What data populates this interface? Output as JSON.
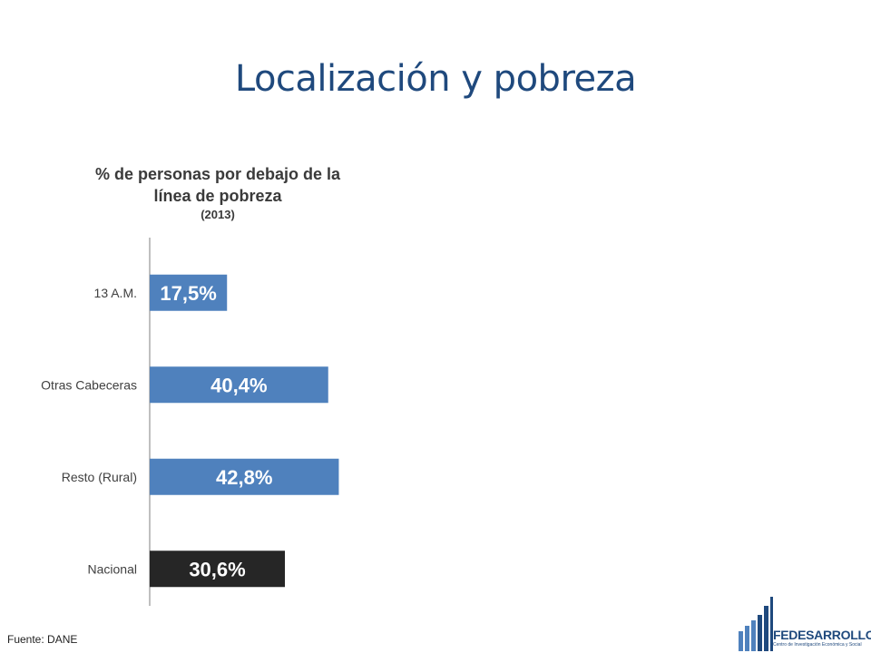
{
  "slide": {
    "title": "Localización y pobreza",
    "source": "Fuente: DANE"
  },
  "chart_data": {
    "type": "bar",
    "orientation": "horizontal",
    "title_lines": [
      "% de personas por debajo de la",
      "línea de pobreza"
    ],
    "subtitle": "(2013)",
    "categories": [
      "13 A.M.",
      "Otras Cabeceras",
      "Resto (Rural)",
      "Nacional"
    ],
    "values": [
      17.5,
      40.4,
      42.8,
      30.6
    ],
    "data_labels": [
      "17,5%",
      "40,4%",
      "42,8%",
      "30,6%"
    ],
    "bar_colors": [
      "#4f81bd",
      "#4f81bd",
      "#4f81bd",
      "#262626"
    ],
    "xlim": [
      0,
      50
    ],
    "grid": false,
    "legend": "none"
  },
  "logo": {
    "name": "FEDESARROLLO",
    "tagline": "Centro de Investigación Económica y Social",
    "color": "#1f497d",
    "accent": "#4f81bd"
  }
}
